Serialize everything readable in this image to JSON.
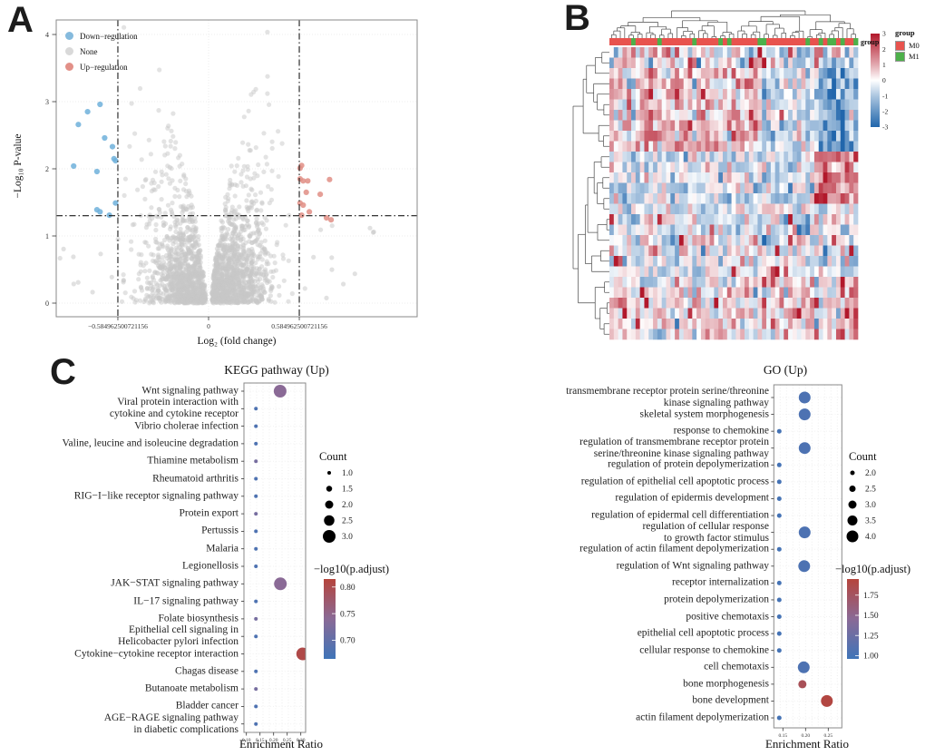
{
  "panels": {
    "a": "A",
    "b": "B",
    "c": "C"
  },
  "chart_data": [
    {
      "id": "volcano",
      "type": "scatter",
      "title": "",
      "xlabel": "Log₂ (fold change)",
      "ylabel": "−Log₁₀ P-value",
      "x_ticks": [
        {
          "v": -0.584962500721156,
          "label": "−0.584962500721156"
        },
        {
          "v": 0,
          "label": "0"
        },
        {
          "v": 0.584962500721156,
          "label": "0.584962500721156"
        }
      ],
      "y_ticks": [
        0,
        1,
        2,
        3,
        4
      ],
      "xlim": [
        -1.0,
        1.36
      ],
      "ylim": [
        -0.2,
        4.25
      ],
      "threshold_vlines": [
        -0.584962500721156,
        0.584962500721156
      ],
      "threshold_hline": 1.301,
      "legend": [
        {
          "label": "Down−regulation",
          "color": "#85badd"
        },
        {
          "label": "None",
          "color": "#d9d9d9"
        },
        {
          "label": "Up−regulation",
          "color": "#e29088"
        }
      ],
      "series": [
        {
          "name": "Down−regulation",
          "color": "#6fb0da",
          "points": [
            [
              -0.84,
              2.66
            ],
            [
              -0.7,
              2.96
            ],
            [
              -0.87,
              2.04
            ],
            [
              -0.67,
              2.46
            ],
            [
              -0.72,
              1.96
            ],
            [
              -0.61,
              2.15
            ],
            [
              -0.6,
              2.12
            ],
            [
              -0.72,
              1.39
            ],
            [
              -0.7,
              1.36
            ],
            [
              -0.64,
              1.31
            ],
            [
              -0.6,
              1.49
            ],
            [
              -0.78,
              2.85
            ],
            [
              -0.62,
              2.33
            ]
          ]
        },
        {
          "name": "Up−regulation",
          "color": "#e08e85",
          "points": [
            [
              0.59,
              2.01
            ],
            [
              0.6,
              2.05
            ],
            [
              0.59,
              1.85
            ],
            [
              0.61,
              1.82
            ],
            [
              0.64,
              1.82
            ],
            [
              0.63,
              1.65
            ],
            [
              0.59,
              1.49
            ],
            [
              0.61,
              1.46
            ],
            [
              0.78,
              1.84
            ],
            [
              0.65,
              1.36
            ],
            [
              0.6,
              1.31
            ],
            [
              0.76,
              1.27
            ],
            [
              0.79,
              1.24
            ],
            [
              0.72,
              1.62
            ]
          ]
        }
      ],
      "none_cloud": {
        "name": "None",
        "color": "#c8c8c8",
        "count": 2300,
        "seed": 7
      }
    },
    {
      "id": "heatmap",
      "type": "heatmap",
      "rows": 28,
      "cols": 57,
      "value_range": [
        -3,
        3
      ],
      "colorbar_ticks": [
        3,
        2,
        1,
        0,
        -1,
        -2,
        -3
      ],
      "color_high": "#b2182b",
      "color_mid": "#ffffff",
      "color_low": "#2166ac",
      "annotation_label": "group",
      "group_legend": {
        "title": "group",
        "items": [
          {
            "label": "M0",
            "color": "#e8534e"
          },
          {
            "label": "M1",
            "color": "#4db04a"
          }
        ]
      },
      "m1_columns": [
        5,
        11,
        19,
        25,
        27,
        34,
        35,
        45,
        48,
        50,
        51,
        53,
        56
      ],
      "seed": 11
    },
    {
      "id": "kegg",
      "type": "dot",
      "title": "KEGG pathway (Up)",
      "xlabel": "Enrichment Ratio",
      "x_ticks": [
        "0.10",
        "0.15",
        "0.20",
        "0.25",
        "0.30"
      ],
      "xlim": [
        0.091,
        0.3177
      ],
      "terms": [
        {
          "label": "Wnt signaling pathway",
          "ratio": 0.224,
          "count": 3,
          "padj": 0.74
        },
        {
          "label": "Viral protein interaction with\ncytokine and cytokine receptor",
          "ratio": 0.135,
          "count": 1,
          "padj": 0.68
        },
        {
          "label": "Vibrio cholerae infection",
          "ratio": 0.135,
          "count": 1,
          "padj": 0.68
        },
        {
          "label": "Valine, leucine and isoleucine degradation",
          "ratio": 0.135,
          "count": 1,
          "padj": 0.68
        },
        {
          "label": "Thiamine metabolism",
          "ratio": 0.135,
          "count": 1,
          "padj": 0.72
        },
        {
          "label": "Rheumatoid arthritis",
          "ratio": 0.135,
          "count": 1,
          "padj": 0.68
        },
        {
          "label": "RIG−I−like receptor signaling pathway",
          "ratio": 0.135,
          "count": 1,
          "padj": 0.68
        },
        {
          "label": "Protein export",
          "ratio": 0.135,
          "count": 1,
          "padj": 0.72
        },
        {
          "label": "Pertussis",
          "ratio": 0.135,
          "count": 1,
          "padj": 0.68
        },
        {
          "label": "Malaria",
          "ratio": 0.135,
          "count": 1,
          "padj": 0.68
        },
        {
          "label": "Legionellosis",
          "ratio": 0.135,
          "count": 1,
          "padj": 0.68
        },
        {
          "label": "JAK−STAT signaling pathway",
          "ratio": 0.225,
          "count": 3,
          "padj": 0.74
        },
        {
          "label": "IL−17 signaling pathway",
          "ratio": 0.135,
          "count": 1,
          "padj": 0.68
        },
        {
          "label": "Folate biosynthesis",
          "ratio": 0.135,
          "count": 1,
          "padj": 0.72
        },
        {
          "label": "Epithelial cell signaling in\nHelicobacter pylori infection",
          "ratio": 0.135,
          "count": 1,
          "padj": 0.68
        },
        {
          "label": "Cytokine−cytokine receptor interaction",
          "ratio": 0.307,
          "count": 3,
          "padj": 0.805
        },
        {
          "label": "Chagas disease",
          "ratio": 0.135,
          "count": 1,
          "padj": 0.68
        },
        {
          "label": "Butanoate metabolism",
          "ratio": 0.135,
          "count": 1,
          "padj": 0.72
        },
        {
          "label": "Bladder cancer",
          "ratio": 0.135,
          "count": 1,
          "padj": 0.68
        },
        {
          "label": "AGE−RAGE signaling pathway\nin diabetic complications",
          "ratio": 0.135,
          "count": 1,
          "padj": 0.68
        }
      ],
      "legend": {
        "count_title": "Count",
        "count_items": [
          "1.0",
          "1.5",
          "2.0",
          "2.5",
          "3.0"
        ],
        "color_title": "−log10(p.adjust)",
        "color_ticks": [
          "0.80",
          "0.75",
          "0.70"
        ],
        "color_domain": [
          0.665,
          0.815
        ]
      }
    },
    {
      "id": "go",
      "type": "dot",
      "title": "GO (Up)",
      "xlabel": "Enrichment Ratio",
      "x_ticks": [
        "0.15",
        "0.20",
        "0.25"
      ],
      "xlim": [
        0.13,
        0.28
      ],
      "terms": [
        {
          "label": "transmembrane receptor protein serine/threonine\nkinase signaling pathway",
          "ratio": 0.198,
          "count": 4,
          "padj": 1.05
        },
        {
          "label": "skeletal system morphogenesis",
          "ratio": 0.198,
          "count": 4,
          "padj": 1.05
        },
        {
          "label": "response to chemokine",
          "ratio": 0.142,
          "count": 2,
          "padj": 1.0
        },
        {
          "label": "regulation of transmembrane receptor protein\nserine/threonine kinase signaling pathway",
          "ratio": 0.198,
          "count": 4,
          "padj": 1.05
        },
        {
          "label": "regulation of protein depolymerization",
          "ratio": 0.142,
          "count": 2,
          "padj": 1.0
        },
        {
          "label": "regulation of epithelial cell apoptotic process",
          "ratio": 0.142,
          "count": 2,
          "padj": 1.0
        },
        {
          "label": "regulation of epidermis development",
          "ratio": 0.142,
          "count": 2,
          "padj": 1.0
        },
        {
          "label": "regulation of epidermal cell differentiation",
          "ratio": 0.142,
          "count": 2,
          "padj": 1.0
        },
        {
          "label": "regulation of cellular response\nto growth factor stimulus",
          "ratio": 0.198,
          "count": 4,
          "padj": 1.05
        },
        {
          "label": "regulation of actin filament depolymerization",
          "ratio": 0.142,
          "count": 2,
          "padj": 1.0
        },
        {
          "label": "regulation of Wnt signaling pathway",
          "ratio": 0.197,
          "count": 4,
          "padj": 1.05
        },
        {
          "label": "receptor internalization",
          "ratio": 0.142,
          "count": 2,
          "padj": 1.0
        },
        {
          "label": "protein depolymerization",
          "ratio": 0.142,
          "count": 2,
          "padj": 1.0
        },
        {
          "label": "positive chemotaxis",
          "ratio": 0.142,
          "count": 2,
          "padj": 1.0
        },
        {
          "label": "epithelial cell apoptotic process",
          "ratio": 0.142,
          "count": 2,
          "padj": 1.0
        },
        {
          "label": "cellular response to chemokine",
          "ratio": 0.142,
          "count": 2,
          "padj": 1.0
        },
        {
          "label": "cell chemotaxis",
          "ratio": 0.196,
          "count": 4,
          "padj": 1.05
        },
        {
          "label": "bone morphogenesis",
          "ratio": 0.193,
          "count": 3,
          "padj": 1.8
        },
        {
          "label": "bone development",
          "ratio": 0.247,
          "count": 4,
          "padj": 1.92
        },
        {
          "label": "actin filament depolymerization",
          "ratio": 0.142,
          "count": 2,
          "padj": 1.0
        }
      ],
      "legend": {
        "count_title": "Count",
        "count_items": [
          "2.0",
          "2.5",
          "3.0",
          "3.5",
          "4.0"
        ],
        "color_title": "−log10(p.adjust)",
        "color_ticks": [
          "1.75",
          "1.50",
          "1.25",
          "1.00"
        ],
        "color_domain": [
          0.96,
          1.95
        ]
      }
    }
  ]
}
